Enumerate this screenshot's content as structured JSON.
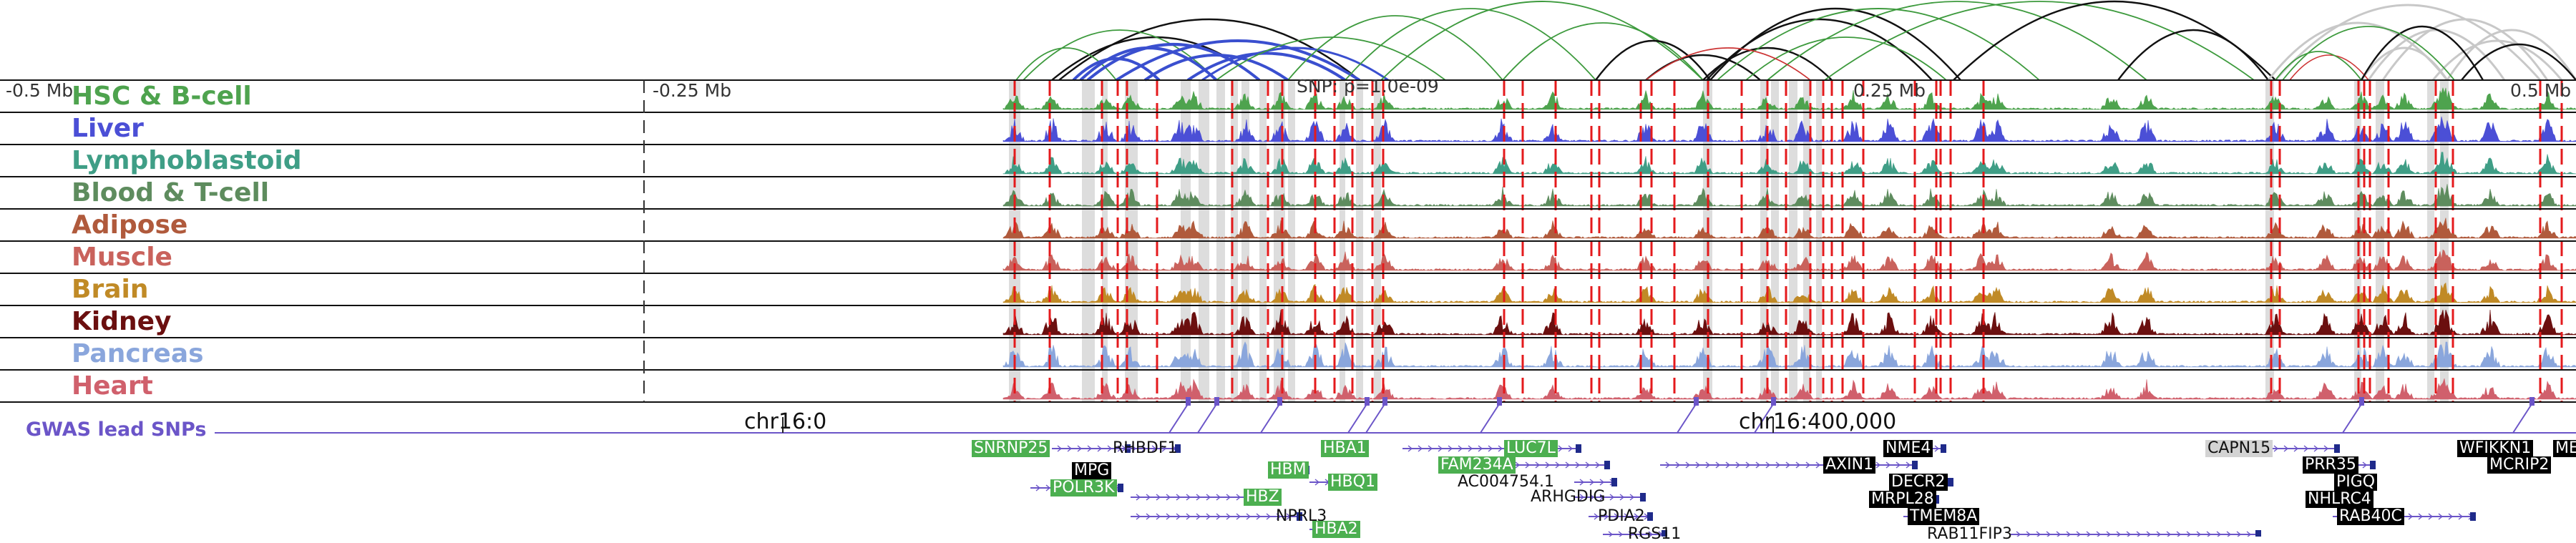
{
  "tracks": [
    {
      "name": "HSC & B-cell",
      "color": "#4ea34e"
    },
    {
      "name": "Liver",
      "color": "#4b4fd6"
    },
    {
      "name": "Lymphoblastoid",
      "color": "#3f9e86"
    },
    {
      "name": "Blood & T-cell",
      "color": "#5e8c5e"
    },
    {
      "name": "Adipose",
      "color": "#b05a3c"
    },
    {
      "name": "Muscle",
      "color": "#c9625c"
    },
    {
      "name": "Brain",
      "color": "#c08a26"
    },
    {
      "name": "Kidney",
      "color": "#6b0f0f"
    },
    {
      "name": "Pancreas",
      "color": "#8aa6dc"
    },
    {
      "name": "Heart",
      "color": "#d0606c"
    }
  ],
  "axis": {
    "left_label": "-0.5 Mb",
    "mid_left_label": "-0.25 Mb",
    "snp_label": "SNP: p=1.0e-09",
    "mid_right_label": "0.25 Mb",
    "right_label": "0.5 Mb"
  },
  "chromosome": {
    "label_left": "chr16:0",
    "label_right": "chr16:400,000"
  },
  "gwas_label": "GWAS lead SNPs",
  "genes": [
    {
      "name": "SNRNP25",
      "style": "green"
    },
    {
      "name": "RHBDF1",
      "style": "plain"
    },
    {
      "name": "MPG",
      "style": "black"
    },
    {
      "name": "POLR3K",
      "style": "green"
    },
    {
      "name": "HBZ",
      "style": "green"
    },
    {
      "name": "NPRL3",
      "style": "plain"
    },
    {
      "name": "HBM",
      "style": "green"
    },
    {
      "name": "HBA1",
      "style": "green"
    },
    {
      "name": "HBQ1",
      "style": "green"
    },
    {
      "name": "HBA2",
      "style": "green"
    },
    {
      "name": "LUC7L",
      "style": "green"
    },
    {
      "name": "FAM234A",
      "style": "green"
    },
    {
      "name": "AC004754.1",
      "style": "plain"
    },
    {
      "name": "ARHGDIG",
      "style": "plain"
    },
    {
      "name": "PDIA2",
      "style": "plain"
    },
    {
      "name": "RGS11",
      "style": "plain"
    },
    {
      "name": "NME4",
      "style": "black"
    },
    {
      "name": "AXIN1",
      "style": "black"
    },
    {
      "name": "DECR2",
      "style": "black"
    },
    {
      "name": "MRPL28",
      "style": "black"
    },
    {
      "name": "TMEM8A",
      "style": "black"
    },
    {
      "name": "RAB11FIP3",
      "style": "plain"
    },
    {
      "name": "CAPN15",
      "style": "grey"
    },
    {
      "name": "PRR35",
      "style": "black"
    },
    {
      "name": "PIGQ",
      "style": "black"
    },
    {
      "name": "NHLRC4",
      "style": "black"
    },
    {
      "name": "RAB40C",
      "style": "black"
    },
    {
      "name": "WFIKKN1",
      "style": "black"
    },
    {
      "name": "ME",
      "style": "black"
    },
    {
      "name": "MCRIP2",
      "style": "black"
    }
  ],
  "colors": {
    "snp_line": "#e41a1c",
    "highlight": "#dddddd",
    "gwas": "#6b55c8",
    "arc_black": "#111111",
    "arc_green": "#3d9a3d",
    "arc_blue": "#3a4fcf",
    "arc_grey": "#c8c8c8",
    "arc_red": "#cc3333"
  }
}
